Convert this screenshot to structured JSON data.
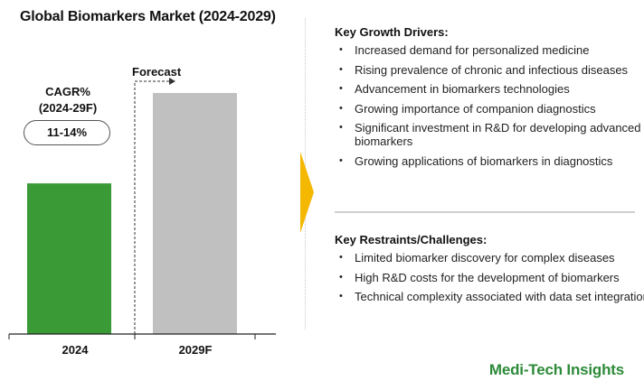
{
  "chart_data": {
    "type": "bar",
    "title": "Global Biomarkers Market (2024-2029)",
    "categories": [
      "2024",
      "2029F"
    ],
    "values": [
      0.5,
      0.8
    ],
    "ylim": [
      0,
      0.8
    ],
    "colors": [
      "#3a9a35",
      "#c0c0c0"
    ],
    "grid": false,
    "annotations": {
      "cagr_label_line1": "CAGR%",
      "cagr_label_line2": "(2024-29F)",
      "cagr_value": "11-14%",
      "forecast_label": "Forecast"
    }
  },
  "drivers": {
    "heading": "Key Growth Drivers:",
    "items": [
      "Increased demand for personalized medicine",
      "Rising prevalence of chronic and infectious diseases",
      "Advancement in biomarkers technologies",
      "Growing importance of companion diagnostics",
      "Significant investment in R&D for developing advanced biomarkers",
      "Growing applications of biomarkers in diagnostics"
    ]
  },
  "restraints": {
    "heading": "Key Restraints/Challenges:",
    "items": [
      "Limited biomarker discovery for complex diseases",
      "High R&D costs for the development of biomarkers",
      "Technical complexity associated with data set integration"
    ]
  },
  "brand": "Medi-Tech Insights",
  "colors": {
    "accent_arrow": "#f5b800",
    "brand_green": "#2e8b3a"
  }
}
